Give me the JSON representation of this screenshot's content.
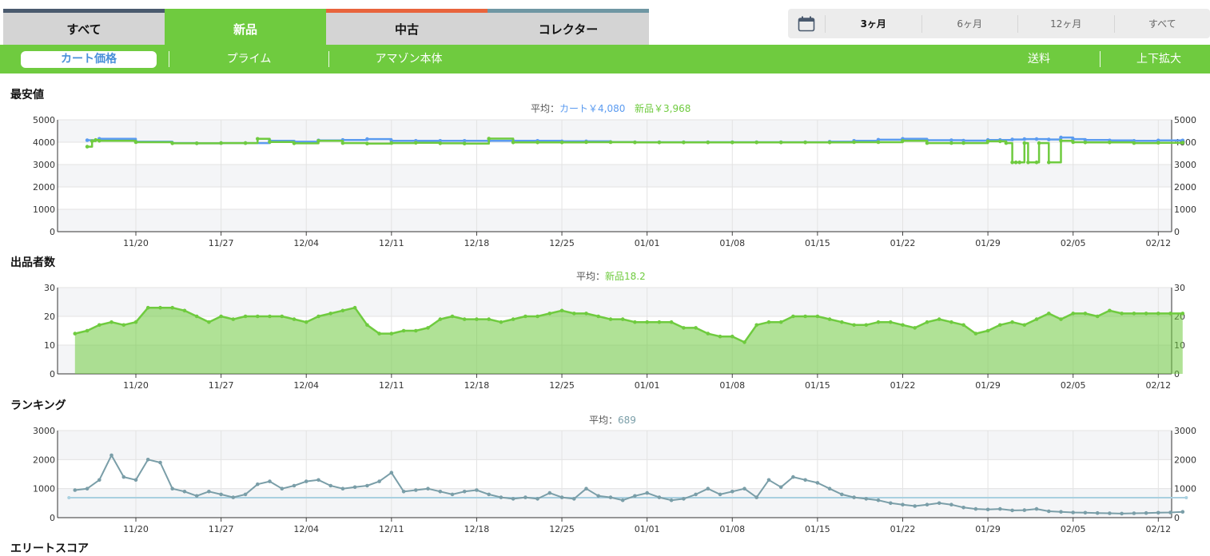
{
  "tabs": [
    {
      "label": "すべて",
      "active": false,
      "stripe": "#4a5a6e"
    },
    {
      "label": "新品",
      "active": true,
      "stripe": "#6fcb3f"
    },
    {
      "label": "中古",
      "active": false,
      "stripe": "#e8643c"
    },
    {
      "label": "コレクター",
      "active": false,
      "stripe": "#6f97a3"
    }
  ],
  "range": {
    "icon": "calendar-icon",
    "options": [
      {
        "label": "3ヶ月",
        "active": true
      },
      {
        "label": "6ヶ月",
        "active": false
      },
      {
        "label": "12ヶ月",
        "active": false
      },
      {
        "label": "すべて",
        "active": false
      }
    ]
  },
  "subnav": {
    "cart": "カート価格",
    "prime": "プライム",
    "amazon": "アマゾン本体",
    "shipping": "送料",
    "zoom": "上下拡大"
  },
  "colors": {
    "green": "#6fcb3f",
    "blue": "#5b9bf0",
    "slate": "#7a9ea8",
    "avgline": "#a9d0e0"
  },
  "sections": {
    "price": {
      "title": "最安値",
      "avg_prefix": "平均：",
      "avg_cart": "カート￥4,080",
      "avg_new": "新品￥3,968"
    },
    "offers": {
      "title": "出品者数",
      "avg_prefix": "平均：",
      "avg_new": "新品18.2"
    },
    "rank": {
      "title": "ランキング",
      "avg_prefix": "平均：",
      "avg_value": "689"
    },
    "next": {
      "title": "エリートスコア"
    }
  },
  "chart_data": [
    {
      "type": "line",
      "title": "最安値",
      "x_ticks": [
        "11/20",
        "11/27",
        "12/04",
        "12/11",
        "12/18",
        "12/25",
        "01/01",
        "01/08",
        "01/15",
        "01/22",
        "01/29",
        "02/05",
        "02/12"
      ],
      "ylim": [
        0,
        5000
      ],
      "y_ticks": [
        0,
        1000,
        2000,
        3000,
        4000,
        5000
      ],
      "series": [
        {
          "name": "カート",
          "color": "#5b9bf0",
          "x": [
            -4,
            -3,
            0,
            3,
            5,
            7,
            9,
            11,
            13,
            15,
            17,
            19,
            21,
            23,
            25,
            27,
            29,
            31,
            33,
            35,
            37,
            39,
            41,
            43,
            45,
            47,
            49,
            51,
            53,
            55,
            57,
            59,
            61,
            63,
            65,
            67,
            68,
            70,
            71,
            72,
            73,
            74,
            75,
            76,
            77,
            78,
            80,
            82,
            84,
            86
          ],
          "y": [
            4090,
            4150,
            4020,
            3960,
            3950,
            3960,
            3960,
            4060,
            4020,
            4080,
            4100,
            4140,
            4060,
            4060,
            4060,
            4060,
            4060,
            4060,
            4060,
            4040,
            4040,
            4010,
            4000,
            4000,
            4000,
            4000,
            4000,
            4000,
            4000,
            4000,
            4020,
            4060,
            4110,
            4150,
            4090,
            4090,
            4070,
            4100,
            4100,
            4120,
            4140,
            4140,
            4120,
            4210,
            4140,
            4100,
            4080,
            4060,
            4080,
            4080
          ]
        },
        {
          "name": "新品",
          "color": "#6fcb3f",
          "x": [
            -4,
            -3.6,
            -3.3,
            -3,
            0,
            3,
            5,
            7,
            9,
            10,
            11,
            13,
            15,
            17,
            19,
            21,
            23,
            25,
            27,
            29,
            31,
            33,
            35,
            37,
            39,
            41,
            43,
            45,
            47,
            49,
            51,
            53,
            55,
            57,
            59,
            61,
            63,
            65,
            67,
            68,
            70,
            71,
            71.5,
            72,
            72.3,
            72.6,
            73,
            73.3,
            74,
            74.2,
            75,
            76,
            77,
            78,
            80,
            82,
            84,
            86
          ],
          "y": [
            3800,
            4050,
            4100,
            4060,
            4000,
            3950,
            3950,
            3960,
            3960,
            4150,
            4010,
            3950,
            4060,
            3960,
            3940,
            3960,
            3970,
            3950,
            3940,
            4160,
            3990,
            3990,
            3990,
            4000,
            4000,
            3990,
            3990,
            3990,
            3990,
            3990,
            3990,
            3990,
            3990,
            3990,
            4000,
            4000,
            4060,
            3960,
            3960,
            3960,
            4040,
            4040,
            3960,
            3100,
            3100,
            3100,
            3960,
            3100,
            3100,
            3960,
            3100,
            4060,
            4000,
            3990,
            3990,
            3960,
            3970,
            3980
          ]
        }
      ]
    },
    {
      "type": "area",
      "title": "出品者数",
      "x_ticks": [
        "11/20",
        "11/27",
        "12/04",
        "12/11",
        "12/18",
        "12/25",
        "01/01",
        "01/08",
        "01/15",
        "01/22",
        "01/29",
        "02/05",
        "02/12"
      ],
      "ylim": [
        0,
        30
      ],
      "y_ticks": [
        0,
        10,
        20,
        30
      ],
      "series": [
        {
          "name": "新品",
          "color": "#6fcb3f",
          "x": [
            -5,
            -4,
            -3,
            -2,
            -1,
            0,
            1,
            2,
            3,
            4,
            5,
            6,
            7,
            8,
            9,
            10,
            11,
            12,
            13,
            14,
            15,
            16,
            17,
            18,
            19,
            20,
            21,
            22,
            23,
            24,
            25,
            26,
            27,
            28,
            29,
            30,
            31,
            32,
            33,
            34,
            35,
            36,
            37,
            38,
            39,
            40,
            41,
            42,
            43,
            44,
            45,
            46,
            47,
            48,
            49,
            50,
            51,
            52,
            53,
            54,
            55,
            56,
            57,
            58,
            59,
            60,
            61,
            62,
            63,
            64,
            65,
            66,
            67,
            68,
            69,
            70,
            71,
            72,
            73,
            74,
            75,
            76,
            77,
            78,
            79,
            80,
            81,
            82,
            83,
            84,
            85,
            86
          ],
          "y": [
            14,
            15,
            17,
            18,
            17,
            18,
            23,
            23,
            23,
            22,
            20,
            18,
            20,
            19,
            20,
            20,
            20,
            20,
            19,
            18,
            20,
            21,
            22,
            23,
            17,
            14,
            14,
            15,
            15,
            16,
            19,
            20,
            19,
            19,
            19,
            18,
            19,
            20,
            20,
            21,
            22,
            21,
            21,
            20,
            19,
            19,
            18,
            18,
            18,
            18,
            16,
            16,
            14,
            13,
            13,
            11,
            17,
            18,
            18,
            20,
            20,
            20,
            19,
            18,
            17,
            17,
            18,
            18,
            17,
            16,
            18,
            19,
            18,
            17,
            14,
            15,
            17,
            18,
            17,
            19,
            21,
            19,
            21,
            21,
            20,
            22,
            21,
            21,
            21,
            21,
            21,
            21
          ]
        }
      ]
    },
    {
      "type": "line",
      "title": "ランキング",
      "x_ticks": [
        "11/20",
        "11/27",
        "12/04",
        "12/11",
        "12/18",
        "12/25",
        "01/01",
        "01/08",
        "01/15",
        "01/22",
        "01/29",
        "02/05",
        "02/12"
      ],
      "ylim": [
        0,
        3000
      ],
      "y_ticks": [
        0,
        1000,
        2000,
        3000
      ],
      "average": 689,
      "series": [
        {
          "name": "ランキング",
          "color": "#7a9ea8",
          "x": [
            -5,
            -4,
            -3,
            -2,
            -1,
            0,
            1,
            2,
            3,
            4,
            5,
            6,
            7,
            8,
            9,
            10,
            11,
            12,
            13,
            14,
            15,
            16,
            17,
            18,
            19,
            20,
            21,
            22,
            23,
            24,
            25,
            26,
            27,
            28,
            29,
            30,
            31,
            32,
            33,
            34,
            35,
            36,
            37,
            38,
            39,
            40,
            41,
            42,
            43,
            44,
            45,
            46,
            47,
            48,
            49,
            50,
            51,
            52,
            53,
            54,
            55,
            56,
            57,
            58,
            59,
            60,
            61,
            62,
            63,
            64,
            65,
            66,
            67,
            68,
            69,
            70,
            71,
            72,
            73,
            74,
            75,
            76,
            77,
            78,
            79,
            80,
            81,
            82,
            83,
            84,
            85,
            86
          ],
          "y": [
            950,
            1000,
            1300,
            2150,
            1400,
            1300,
            2000,
            1900,
            1000,
            900,
            750,
            900,
            800,
            700,
            800,
            1150,
            1250,
            1000,
            1100,
            1250,
            1300,
            1100,
            1000,
            1050,
            1100,
            1250,
            1550,
            900,
            950,
            1000,
            900,
            800,
            900,
            950,
            800,
            700,
            650,
            700,
            650,
            850,
            700,
            650,
            1000,
            750,
            700,
            600,
            750,
            850,
            700,
            600,
            650,
            800,
            1000,
            800,
            900,
            1000,
            700,
            1300,
            1050,
            1400,
            1300,
            1200,
            1000,
            800,
            700,
            650,
            600,
            500,
            450,
            400,
            450,
            500,
            450,
            350,
            300,
            280,
            300,
            250,
            260,
            300,
            220,
            200,
            180,
            170,
            160,
            150,
            140,
            150,
            160,
            170,
            180,
            200
          ]
        }
      ]
    }
  ]
}
